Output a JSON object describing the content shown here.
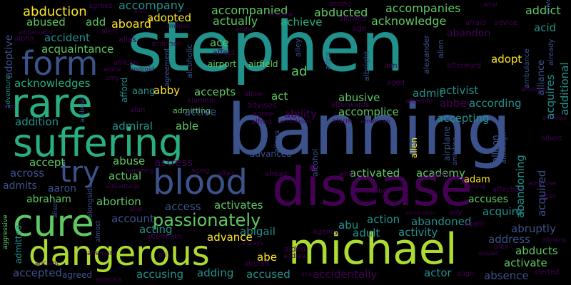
{
  "palette": {
    "background": "#000000",
    "viridis": [
      "#440154",
      "#3b528b",
      "#2c728e",
      "#21918c",
      "#28ae80",
      "#5ec962",
      "#addc30",
      "#fde725"
    ]
  },
  "words": [
    {
      "text": "stephen",
      "color": "#21918c"
    },
    {
      "text": "banning",
      "color": "#3b528b"
    },
    {
      "text": "disease",
      "color": "#440154"
    },
    {
      "text": "suffering",
      "color": "#28ae80"
    },
    {
      "text": "michael",
      "color": "#addc30"
    },
    {
      "text": "dangerous",
      "color": "#addc30"
    },
    {
      "text": "rare",
      "color": "#28ae80"
    },
    {
      "text": "cure",
      "color": "#5ec962"
    },
    {
      "text": "form",
      "color": "#3b528b"
    },
    {
      "text": "blood",
      "color": "#3b528b"
    },
    {
      "text": "try",
      "color": "#3b528b"
    },
    {
      "text": "passionately",
      "color": "#5ec962"
    },
    {
      "text": "abduction",
      "color": "#fde725"
    },
    {
      "text": "accompany",
      "color": "#21918c"
    },
    {
      "text": "accompanied",
      "color": "#5ec962"
    },
    {
      "text": "abducted",
      "color": "#5ec962"
    },
    {
      "text": "accompanies",
      "color": "#5ec962"
    },
    {
      "text": "addict",
      "color": "#5ec962"
    },
    {
      "text": "abused",
      "color": "#5ec962"
    },
    {
      "text": "adopted",
      "color": "#fde725"
    },
    {
      "text": "add",
      "color": "#5ec962"
    },
    {
      "text": "aboard",
      "color": "#fde725"
    },
    {
      "text": "actually",
      "color": "#5ec962"
    },
    {
      "text": "achieve",
      "color": "#28ae80"
    },
    {
      "text": "acknowledge",
      "color": "#5ec962"
    },
    {
      "text": "abandon",
      "color": "#440154"
    },
    {
      "text": "acid",
      "color": "#21918c"
    },
    {
      "text": "accident",
      "color": "#21918c"
    },
    {
      "text": "acquaintance",
      "color": "#5ec962"
    },
    {
      "text": "ace",
      "color": "#5ec962"
    },
    {
      "text": "adopt",
      "color": "#fde725"
    },
    {
      "text": "airport",
      "color": "#5ec962"
    },
    {
      "text": "airfield",
      "color": "#5ec962"
    },
    {
      "text": "ad",
      "color": "#5ec962"
    },
    {
      "text": "acknowledges",
      "color": "#28ae80"
    },
    {
      "text": "admitting",
      "color": "#5ec962"
    },
    {
      "text": "accepts",
      "color": "#5ec962"
    },
    {
      "text": "act",
      "color": "#5ec962"
    },
    {
      "text": "abusive",
      "color": "#5ec962"
    },
    {
      "text": "admit",
      "color": "#21918c"
    },
    {
      "text": "activist",
      "color": "#21918c"
    },
    {
      "text": "aang",
      "color": "#21918c"
    },
    {
      "text": "abby",
      "color": "#fde725"
    },
    {
      "text": "active",
      "color": "#3b528b"
    },
    {
      "text": "ability",
      "color": "#440154"
    },
    {
      "text": "accomplice",
      "color": "#5ec962"
    },
    {
      "text": "abbey",
      "color": "#440154"
    },
    {
      "text": "according",
      "color": "#21918c"
    },
    {
      "text": "accepting",
      "color": "#21918c"
    },
    {
      "text": "addition",
      "color": "#21918c"
    },
    {
      "text": "admiral",
      "color": "#21918c"
    },
    {
      "text": "able",
      "color": "#5ec962"
    },
    {
      "text": "advanced",
      "color": "#3b528b"
    },
    {
      "text": "accept",
      "color": "#5ec962"
    },
    {
      "text": "abuse",
      "color": "#5ec962"
    },
    {
      "text": "actress",
      "color": "#440154"
    },
    {
      "text": "across",
      "color": "#3b528b"
    },
    {
      "text": "actual",
      "color": "#5ec962"
    },
    {
      "text": "activated",
      "color": "#5ec962"
    },
    {
      "text": "academy",
      "color": "#5ec962"
    },
    {
      "text": "adam",
      "color": "#fde725"
    },
    {
      "text": "admits",
      "color": "#3b528b"
    },
    {
      "text": "aaron",
      "color": "#3b528b"
    },
    {
      "text": "accuses",
      "color": "#5ec962"
    },
    {
      "text": "abraham",
      "color": "#5ec962"
    },
    {
      "text": "abortion",
      "color": "#5ec962"
    },
    {
      "text": "access",
      "color": "#3b528b"
    },
    {
      "text": "activates",
      "color": "#5ec962"
    },
    {
      "text": "acquire",
      "color": "#21918c"
    },
    {
      "text": "account",
      "color": "#3b528b"
    },
    {
      "text": "abu",
      "color": "#21918c"
    },
    {
      "text": "action",
      "color": "#21918c"
    },
    {
      "text": "abandoned",
      "color": "#21918c"
    },
    {
      "text": "acting",
      "color": "#21918c"
    },
    {
      "text": "abigail",
      "color": "#21918c"
    },
    {
      "text": "adult",
      "color": "#21918c"
    },
    {
      "text": "activity",
      "color": "#21918c"
    },
    {
      "text": "abruptly",
      "color": "#3b528b"
    },
    {
      "text": "advance",
      "color": "#fde725"
    },
    {
      "text": "address",
      "color": "#3b528b"
    },
    {
      "text": "abducts",
      "color": "#5ec962"
    },
    {
      "text": "abe",
      "color": "#fde725"
    },
    {
      "text": "activate",
      "color": "#5ec962"
    },
    {
      "text": "accepted",
      "color": "#3b528b"
    },
    {
      "text": "agreed",
      "color": "#3b528b"
    },
    {
      "text": "accusing",
      "color": "#21918c"
    },
    {
      "text": "adding",
      "color": "#21918c"
    },
    {
      "text": "accused",
      "color": "#21918c"
    },
    {
      "text": "accidentally",
      "color": "#440154"
    },
    {
      "text": "actor",
      "color": "#21918c"
    },
    {
      "text": "absence",
      "color": "#3b528b"
    },
    {
      "text": "agrees",
      "color": "#440154"
    },
    {
      "text": "also",
      "color": "#440154"
    },
    {
      "text": "among",
      "color": "#440154"
    },
    {
      "text": "altar",
      "color": "#440154"
    },
    {
      "text": "andrew",
      "color": "#440154"
    },
    {
      "text": "allowed",
      "color": "#440154"
    },
    {
      "text": "age",
      "color": "#440154"
    },
    {
      "text": "afraid",
      "color": "#440154"
    },
    {
      "text": "advice",
      "color": "#440154"
    },
    {
      "text": "alert",
      "color": "#440154"
    },
    {
      "text": "alias",
      "color": "#440154"
    },
    {
      "text": "ambassador",
      "color": "#440154"
    },
    {
      "text": "amends",
      "color": "#440154"
    },
    {
      "text": "andie",
      "color": "#440154"
    },
    {
      "text": "alpha",
      "color": "#440154"
    },
    {
      "text": "anderson",
      "color": "#440154"
    },
    {
      "text": "affect",
      "color": "#440154"
    },
    {
      "text": "african",
      "color": "#440154"
    },
    {
      "text": "alone",
      "color": "#440154"
    },
    {
      "text": "android",
      "color": "#440154"
    },
    {
      "text": "amy",
      "color": "#440154"
    },
    {
      "text": "alan",
      "color": "#440154"
    },
    {
      "text": "alamein",
      "color": "#440154"
    },
    {
      "text": "allow",
      "color": "#440154"
    },
    {
      "text": "advises",
      "color": "#440154"
    },
    {
      "text": "afterwards",
      "color": "#440154"
    },
    {
      "text": "afterlife",
      "color": "#440154"
    },
    {
      "text": "aim",
      "color": "#440154"
    },
    {
      "text": "afterward",
      "color": "#440154"
    },
    {
      "text": "aged",
      "color": "#440154"
    },
    {
      "text": "amongst",
      "color": "#440154"
    },
    {
      "text": "agree",
      "color": "#440154"
    },
    {
      "text": "alfred",
      "color": "#440154"
    },
    {
      "text": "ambitious",
      "color": "#440154"
    },
    {
      "text": "alarm",
      "color": "#440154"
    },
    {
      "text": "american",
      "color": "#440154"
    },
    {
      "text": "ago",
      "color": "#440154"
    },
    {
      "text": "amnesia",
      "color": "#440154"
    },
    {
      "text": "albert",
      "color": "#440154"
    },
    {
      "text": "agreeing",
      "color": "#440154"
    },
    {
      "text": "aging",
      "color": "#440154"
    },
    {
      "text": "affair",
      "color": "#440154"
    },
    {
      "text": "ahead",
      "color": "#440154"
    },
    {
      "text": "amid",
      "color": "#440154"
    },
    {
      "text": "aide",
      "color": "#440154"
    },
    {
      "text": "advantage",
      "color": "#440154"
    },
    {
      "text": "ambushed",
      "color": "#440154"
    },
    {
      "text": "along",
      "color": "#440154"
    },
    {
      "text": "affection",
      "color": "#440154"
    },
    {
      "text": "alter",
      "color": "#440154"
    },
    {
      "text": "ambrose",
      "color": "#440154"
    },
    {
      "text": "allie",
      "color": "#440154"
    },
    {
      "text": "aftermath",
      "color": "#440154"
    },
    {
      "text": "agency",
      "color": "#440154"
    },
    {
      "text": "agent",
      "color": "#440154"
    },
    {
      "text": "ally",
      "color": "#440154"
    },
    {
      "text": "ammunition",
      "color": "#440154"
    },
    {
      "text": "ali",
      "color": "#440154"
    },
    {
      "text": "always",
      "color": "#440154"
    },
    {
      "text": "aided",
      "color": "#440154"
    },
    {
      "text": "andrea",
      "color": "#440154"
    },
    {
      "text": "alex",
      "color": "#440154"
    },
    {
      "text": "amulet",
      "color": "#440154"
    },
    {
      "text": "allowing",
      "color": "#440154"
    },
    {
      "text": "aircraft",
      "color": "#440154"
    },
    {
      "text": "ana",
      "color": "#440154"
    },
    {
      "text": "align",
      "color": "#440154"
    },
    {
      "text": "alerted",
      "color": "#440154"
    },
    {
      "text": "america",
      "color": "#440154"
    },
    {
      "text": "ancient",
      "color": "#440154"
    },
    {
      "text": "alternate",
      "color": "#440154"
    },
    {
      "text": "adoptive",
      "color": "#3b528b"
    },
    {
      "text": "alcoholic",
      "color": "#3b528b"
    },
    {
      "text": "agreement",
      "color": "#3b528b"
    },
    {
      "text": "alley",
      "color": "#3b528b"
    },
    {
      "text": "alice",
      "color": "#3b528b"
    },
    {
      "text": "albright",
      "color": "#3b528b"
    },
    {
      "text": "alexander",
      "color": "#3b528b"
    },
    {
      "text": "alien",
      "color": "#3b528b"
    },
    {
      "text": "alive",
      "color": "#3b528b"
    },
    {
      "text": "already",
      "color": "#3b528b"
    },
    {
      "text": "ambulance",
      "color": "#3b528b"
    },
    {
      "text": "alliance",
      "color": "#3b528b"
    },
    {
      "text": "acquires",
      "color": "#21918c"
    },
    {
      "text": "additional",
      "color": "#21918c"
    },
    {
      "text": "adventure",
      "color": "#21918c"
    },
    {
      "text": "afford",
      "color": "#21918c"
    },
    {
      "text": "ambush",
      "color": "#3b528b"
    },
    {
      "text": "airplane",
      "color": "#3b528b"
    },
    {
      "text": "allison",
      "color": "#3b528b"
    },
    {
      "text": "although",
      "color": "#3b528b"
    },
    {
      "text": "ambition",
      "color": "#3b528b"
    },
    {
      "text": "alcohol",
      "color": "#3b528b"
    },
    {
      "text": "allows",
      "color": "#3b528b"
    },
    {
      "text": "allen",
      "color": "#fde725"
    },
    {
      "text": "abandoning",
      "color": "#21918c"
    },
    {
      "text": "acquired",
      "color": "#3b528b"
    },
    {
      "text": "admitted",
      "color": "#21918c"
    },
    {
      "text": "aggressive",
      "color": "#5ec962"
    },
    {
      "text": "alison",
      "color": "#3b528b"
    },
    {
      "text": "alongside",
      "color": "#3b528b"
    },
    {
      "text": "almost",
      "color": "#3b528b"
    }
  ]
}
